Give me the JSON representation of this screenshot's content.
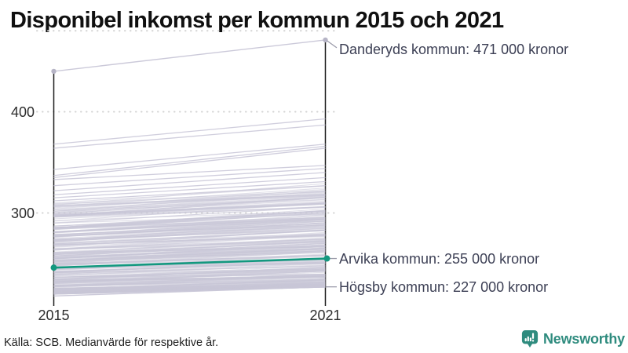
{
  "title": "Disponibel inkomst per kommun 2015 och 2021",
  "source": "Källa: SCB. Medianvärde för respektive år.",
  "branding": {
    "name": "Newsworthy",
    "icon": "newsworthy-chart-bubble-icon",
    "color": "#2E8B7E"
  },
  "colors": {
    "highlight": "#13987F",
    "background_line": "#C8C6D7",
    "axis": "#1C1C1C",
    "grid": "#D2D2D2",
    "leader": "#9B9BAA",
    "endpoint_dot": "#B6B4C6",
    "annotation_text": "#3D4055"
  },
  "chart_data": {
    "type": "slope",
    "title": "Disponibel inkomst per kommun 2015 och 2021",
    "x": [
      2015,
      2021
    ],
    "x_labels": [
      "2015",
      "2021"
    ],
    "value_unit": "tusen kronor",
    "y_ticks": [
      400,
      300
    ],
    "grid_values": [
      300,
      400,
      480
    ],
    "y_axis_range": [
      208,
      480
    ],
    "grid": "dotted",
    "legend": "none",
    "highlight_series": {
      "name": "Arvika kommun",
      "values": [
        246,
        255
      ],
      "label": "Arvika kommun: 255 000 kronor"
    },
    "annotated_series": [
      {
        "name": "Danderyds kommun",
        "values": [
          440,
          471
        ],
        "label": "Danderyds kommun: 471 000 kronor",
        "style": "background",
        "dots": true,
        "label_dy": 12
      },
      {
        "name": "Högsby kommun",
        "values": [
          218,
          227
        ],
        "label": "Högsby kommun: 227 000 kronor",
        "style": "background",
        "dots": false,
        "label_dy": 0
      }
    ],
    "background_series": [
      [
        368,
        393
      ],
      [
        364,
        387
      ],
      [
        343,
        368
      ],
      [
        337,
        366
      ],
      [
        335,
        364
      ],
      [
        333,
        347
      ],
      [
        327,
        344
      ],
      [
        322,
        340
      ],
      [
        318,
        335
      ],
      [
        315,
        331
      ],
      [
        312,
        327
      ]
    ],
    "background_band": {
      "count": 278,
      "values_2015_range": [
        220,
        310
      ],
      "values_2021_min": 227,
      "growth_range_thousands": [
        6,
        32
      ],
      "seed": 7
    }
  }
}
